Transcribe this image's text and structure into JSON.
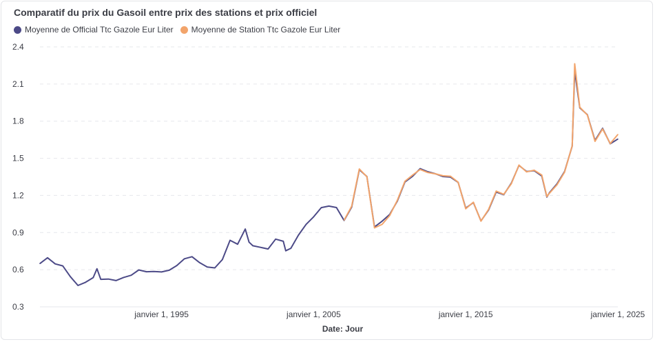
{
  "chart_data": {
    "type": "line",
    "title": "Comparatif du prix du Gasoil entre prix des stations et prix officiel",
    "xlabel": "Date: Jour",
    "ylabel": "",
    "ylim": [
      0.3,
      2.4
    ],
    "yticks": [
      "0.3",
      "0.6",
      "0.9",
      "1.2",
      "1.5",
      "1.8",
      "2.1",
      "2.4"
    ],
    "xticks": [
      "janvier 1, 1995",
      "janvier 1, 2005",
      "janvier 1, 2015",
      "janvier 1, 2025"
    ],
    "xlim": [
      "1987-01-01",
      "2025-01-01"
    ],
    "grid": true,
    "legend_position": "top-left",
    "series": [
      {
        "name": "Moyenne de Official Ttc Gazole Eur Liter",
        "color": "#4c4a87",
        "x": [
          "1987-01",
          "1987-07",
          "1988-01",
          "1988-07",
          "1989-01",
          "1989-07",
          "1990-01",
          "1990-07",
          "1990-10",
          "1991-01",
          "1991-07",
          "1992-01",
          "1992-07",
          "1993-01",
          "1993-07",
          "1994-01",
          "1994-07",
          "1995-01",
          "1995-07",
          "1996-01",
          "1996-07",
          "1997-01",
          "1997-07",
          "1998-01",
          "1998-07",
          "1999-01",
          "1999-07",
          "2000-01",
          "2000-07",
          "2000-10",
          "2001-01",
          "2001-07",
          "2002-01",
          "2002-07",
          "2003-01",
          "2003-03",
          "2003-07",
          "2004-01",
          "2004-07",
          "2005-01",
          "2005-07",
          "2006-01",
          "2006-07",
          "2007-01",
          "2007-07",
          "2008-01",
          "2008-07",
          "2009-01",
          "2009-07",
          "2010-01",
          "2010-07",
          "2011-01",
          "2011-07",
          "2012-01",
          "2012-07",
          "2013-01",
          "2013-07",
          "2014-01",
          "2014-07",
          "2015-01",
          "2015-07",
          "2016-01",
          "2016-07",
          "2017-01",
          "2017-07",
          "2018-01",
          "2018-07",
          "2019-01",
          "2019-07",
          "2020-01",
          "2020-05",
          "2020-07",
          "2021-01",
          "2021-07",
          "2022-01",
          "2022-03",
          "2022-07",
          "2023-01",
          "2023-07",
          "2024-01",
          "2024-07",
          "2025-01"
        ],
        "values": [
          0.65,
          0.69,
          0.64,
          0.63,
          0.55,
          0.48,
          0.5,
          0.53,
          0.6,
          0.52,
          0.53,
          0.52,
          0.54,
          0.55,
          0.59,
          0.58,
          0.59,
          0.59,
          0.6,
          0.63,
          0.68,
          0.7,
          0.66,
          0.63,
          0.62,
          0.68,
          0.83,
          0.8,
          0.93,
          0.83,
          0.8,
          0.78,
          0.76,
          0.84,
          0.83,
          0.76,
          0.78,
          0.88,
          0.96,
          1.02,
          1.1,
          1.12,
          1.11,
          1.0,
          1.1,
          1.4,
          1.35,
          0.95,
          1.0,
          1.05,
          1.15,
          1.3,
          1.35,
          1.42,
          1.4,
          1.38,
          1.35,
          1.34,
          1.3,
          1.1,
          1.15,
          1.0,
          1.08,
          1.22,
          1.2,
          1.3,
          1.45,
          1.4,
          1.4,
          1.35,
          1.18,
          1.22,
          1.3,
          1.4,
          1.6,
          2.2,
          1.9,
          1.85,
          1.65,
          1.75,
          1.62,
          1.65
        ]
      },
      {
        "name": "Moyenne de Station Ttc Gazole Eur Liter",
        "color": "#f2a46b",
        "x": [
          "2007-01",
          "2007-07",
          "2008-01",
          "2008-07",
          "2009-01",
          "2009-07",
          "2010-01",
          "2010-07",
          "2011-01",
          "2011-07",
          "2012-01",
          "2012-07",
          "2013-01",
          "2013-07",
          "2014-01",
          "2014-07",
          "2015-01",
          "2015-07",
          "2016-01",
          "2016-07",
          "2017-01",
          "2017-07",
          "2018-01",
          "2018-07",
          "2019-01",
          "2019-07",
          "2020-01",
          "2020-05",
          "2020-07",
          "2021-01",
          "2021-07",
          "2022-01",
          "2022-03",
          "2022-07",
          "2023-01",
          "2023-07",
          "2024-01",
          "2024-07",
          "2025-01"
        ],
        "values": [
          1.0,
          1.1,
          1.4,
          1.35,
          0.95,
          0.98,
          1.04,
          1.15,
          1.3,
          1.36,
          1.42,
          1.4,
          1.38,
          1.35,
          1.34,
          1.3,
          1.1,
          1.16,
          1.0,
          1.08,
          1.22,
          1.2,
          1.3,
          1.46,
          1.4,
          1.4,
          1.35,
          1.18,
          1.22,
          1.3,
          1.4,
          1.6,
          2.25,
          1.9,
          1.85,
          1.65,
          1.75,
          1.62,
          1.68
        ]
      }
    ]
  }
}
